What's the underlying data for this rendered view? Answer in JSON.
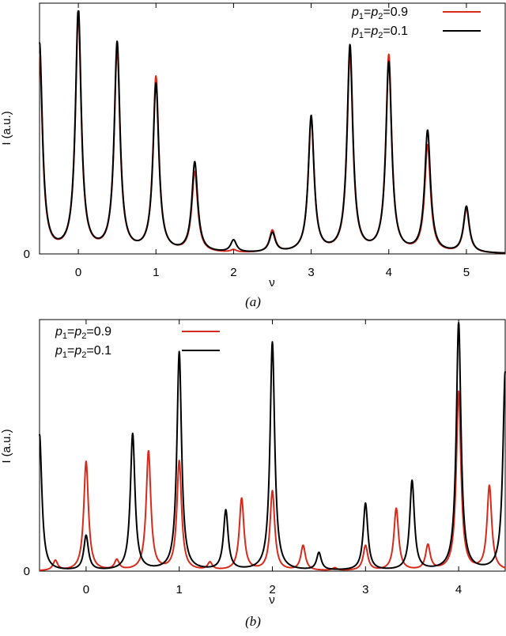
{
  "colors": {
    "red": "#d62a1c",
    "black": "#000000"
  },
  "chart_data": [
    {
      "type": "line",
      "panel_label": "(a)",
      "xlabel": "ν",
      "ylabel": "I (a.u.)",
      "xlim": [
        -0.5,
        5.5
      ],
      "ylim": [
        0,
        1.0
      ],
      "xticks": [
        "0",
        "1",
        "2",
        "3",
        "4",
        "5"
      ],
      "yticks": [
        "0"
      ],
      "legend_position": "top-right",
      "peak_width": 0.045,
      "series": [
        {
          "name": "p1=p2=0.9",
          "color": "#d62a1c",
          "peaks": [
            [
              -0.5,
              0.82
            ],
            [
              0,
              0.97
            ],
            [
              0.5,
              0.83
            ],
            [
              1,
              0.72
            ],
            [
              1.5,
              0.33
            ],
            [
              2,
              0.01
            ],
            [
              2.5,
              0.09
            ],
            [
              3,
              0.55
            ],
            [
              3.5,
              0.81
            ],
            [
              4,
              0.81
            ],
            [
              4.5,
              0.44
            ],
            [
              5,
              0.18
            ]
          ]
        },
        {
          "name": "p1=p2=0.1",
          "color": "#000000",
          "peaks": [
            [
              -0.5,
              0.86
            ],
            [
              0,
              1.0
            ],
            [
              0.5,
              0.86
            ],
            [
              1,
              0.69
            ],
            [
              1.5,
              0.37
            ],
            [
              2,
              0.05
            ],
            [
              2.5,
              0.08
            ],
            [
              3,
              0.56
            ],
            [
              3.5,
              0.85
            ],
            [
              4,
              0.78
            ],
            [
              4.5,
              0.5
            ],
            [
              5,
              0.19
            ]
          ]
        }
      ]
    },
    {
      "type": "line",
      "panel_label": "(b)",
      "xlabel": "ν",
      "ylabel": "I (a.u.)",
      "xlim": [
        -0.5,
        4.5
      ],
      "ylim": [
        0,
        1.0
      ],
      "xticks": [
        "0",
        "1",
        "2",
        "3",
        "4"
      ],
      "yticks": [
        "0"
      ],
      "legend_position": "top-left",
      "peak_width": 0.03,
      "series": [
        {
          "name": "p1=p2=0.9",
          "color": "#d62a1c",
          "peaks": [
            [
              -0.33,
              0.04
            ],
            [
              0,
              0.44
            ],
            [
              0.33,
              0.04
            ],
            [
              0.67,
              0.48
            ],
            [
              1,
              0.44
            ],
            [
              1.33,
              0.03
            ],
            [
              1.67,
              0.29
            ],
            [
              2,
              0.32
            ],
            [
              2.33,
              0.1
            ],
            [
              2.67,
              0.01
            ],
            [
              3,
              0.1
            ],
            [
              3.33,
              0.25
            ],
            [
              3.67,
              0.1
            ],
            [
              4,
              0.72
            ],
            [
              4.33,
              0.34
            ]
          ]
        },
        {
          "name": "p1=p2=0.1",
          "color": "#000000",
          "peaks": [
            [
              -0.5,
              0.55
            ],
            [
              0,
              0.14
            ],
            [
              0.5,
              0.55
            ],
            [
              1,
              0.88
            ],
            [
              1.5,
              0.24
            ],
            [
              2,
              0.92
            ],
            [
              2.5,
              0.07
            ],
            [
              3,
              0.27
            ],
            [
              3.5,
              0.36
            ],
            [
              4,
              1.0
            ],
            [
              4.5,
              0.8
            ]
          ]
        }
      ]
    }
  ]
}
